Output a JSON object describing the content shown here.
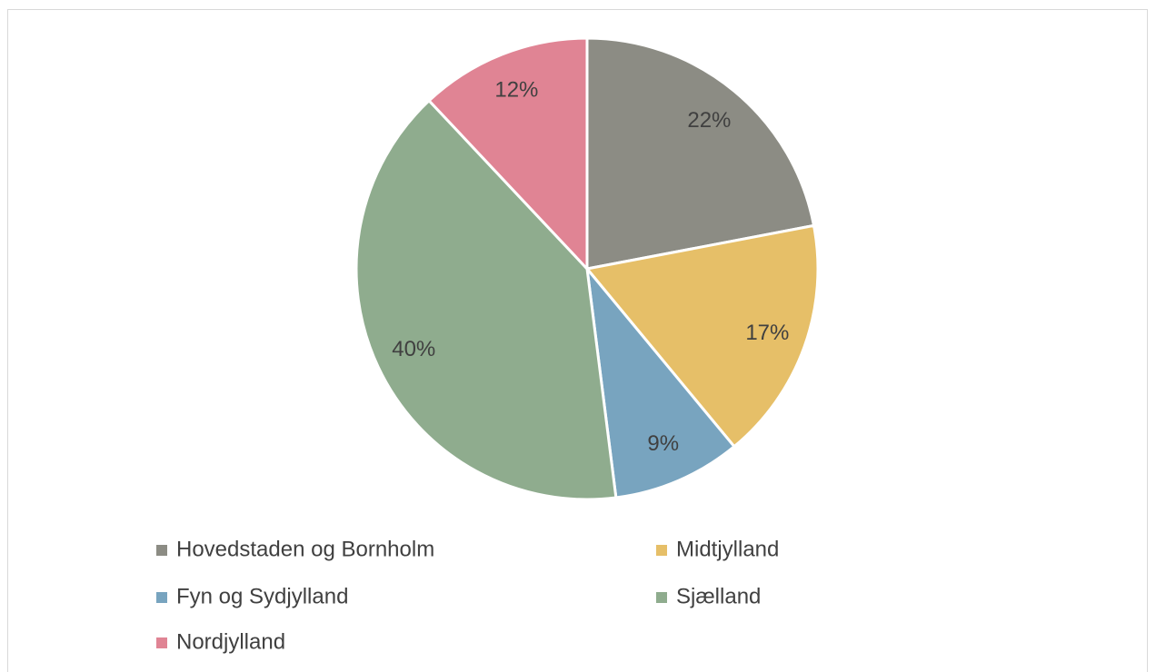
{
  "chart_data": {
    "type": "pie",
    "categories": [
      "Hovedstaden og Bornholm",
      "Midtjylland",
      "Fyn og Sydjylland",
      "Sjælland",
      "Nordjylland"
    ],
    "values": [
      22,
      17,
      9,
      40,
      12
    ],
    "value_labels": [
      "22%",
      "17%",
      "9%",
      "40%",
      "12%"
    ],
    "colors": [
      "#8c8c84",
      "#e6bf68",
      "#78a4bf",
      "#8fac8e",
      "#e08494"
    ],
    "legend": "bottom"
  }
}
